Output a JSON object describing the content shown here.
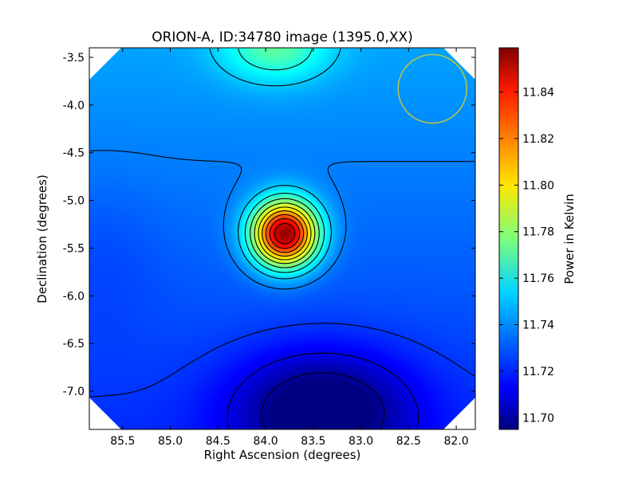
{
  "chart_data": {
    "type": "heatmap",
    "title": "ORION-A, ID:34780 image (1395.0,XX)",
    "xlabel": "Right Ascension (degrees)",
    "ylabel": "Declination (degrees)",
    "xlim": [
      85.85,
      81.8
    ],
    "ylim": [
      -7.4,
      -3.4
    ],
    "x_ticks": [
      "85.5",
      "85.0",
      "84.5",
      "84.0",
      "83.5",
      "83.0",
      "82.5",
      "82.0"
    ],
    "x_tick_values": [
      85.5,
      85.0,
      84.5,
      84.0,
      83.5,
      83.0,
      82.5,
      82.0
    ],
    "y_ticks": [
      "-3.5",
      "-4.0",
      "-4.5",
      "-5.0",
      "-5.5",
      "-6.0",
      "-6.5",
      "-7.0"
    ],
    "y_tick_values": [
      -3.5,
      -4.0,
      -4.5,
      -5.0,
      -5.5,
      -6.0,
      -6.5,
      -7.0
    ],
    "colorbar": {
      "label": "Power in Kelvin",
      "vmin": 11.695,
      "vmax": 11.859,
      "ticks": [
        "11.70",
        "11.72",
        "11.74",
        "11.76",
        "11.78",
        "11.80",
        "11.82",
        "11.84"
      ],
      "tick_values": [
        11.7,
        11.72,
        11.74,
        11.76,
        11.78,
        11.8,
        11.82,
        11.84
      ],
      "colormap": "jet"
    },
    "peak": {
      "ra": 83.8,
      "dec": -5.35,
      "value": 11.858
    },
    "secondary_high": {
      "ra": 83.9,
      "dec": -3.4,
      "value": 11.765
    },
    "low": {
      "ra": 83.4,
      "dec": -7.2,
      "value": 11.696
    },
    "baseline_value": 11.735,
    "contours": "black",
    "beam_circle": {
      "ra": 82.25,
      "dec": -3.83,
      "radius_deg": 0.36,
      "color": "#b8c24a"
    },
    "grid": false,
    "legend": "none"
  }
}
